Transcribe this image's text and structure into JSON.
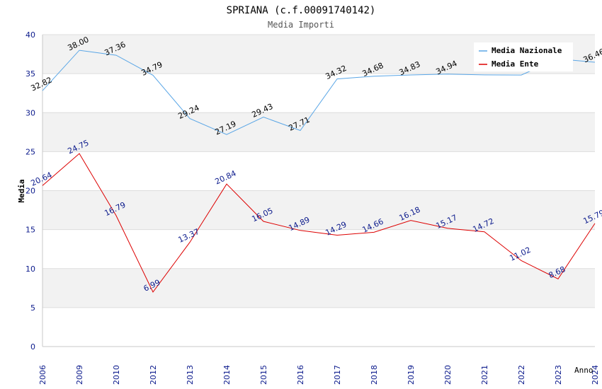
{
  "chart_data": {
    "type": "line",
    "title": "SPRIANA (c.f.00091740142)",
    "subtitle": "Media Importi",
    "xlabel": "Anno",
    "ylabel": "Media",
    "ylim": [
      0,
      40
    ],
    "yticks": [
      0,
      5,
      10,
      15,
      20,
      25,
      30,
      35,
      40
    ],
    "categories": [
      "2006",
      "2009",
      "2010",
      "2012",
      "2013",
      "2014",
      "2015",
      "2016",
      "2017",
      "2018",
      "2019",
      "2020",
      "2021",
      "2022",
      "2023",
      "2024"
    ],
    "series": [
      {
        "name": "Media Nazionale",
        "color": "#5aa6e6",
        "label_color": "#000000",
        "values": [
          32.82,
          38.0,
          37.36,
          34.79,
          29.24,
          27.19,
          29.43,
          27.71,
          34.32,
          34.68,
          34.83,
          34.94,
          34.84,
          34.82,
          36.9,
          36.46
        ],
        "labels": [
          "32.82",
          "38.00",
          "37.36",
          "34.79",
          "29.24",
          "27.19",
          "29.43",
          "27.71",
          "34.32",
          "34.68",
          "34.83",
          "34.94",
          "",
          "",
          "",
          "36.46"
        ]
      },
      {
        "name": "Media Ente",
        "color": "#dd0000",
        "label_color": "#0b1a8c",
        "values": [
          20.64,
          24.75,
          16.79,
          6.99,
          13.37,
          20.84,
          16.05,
          14.89,
          14.29,
          14.66,
          16.18,
          15.17,
          14.72,
          11.02,
          8.68,
          15.79
        ],
        "labels": [
          "20.64",
          "24.75",
          "16.79",
          "6.99",
          "13.37",
          "20.84",
          "16.05",
          "14.89",
          "14.29",
          "14.66",
          "16.18",
          "15.17",
          "14.72",
          "11.02",
          "8.68",
          "15.79"
        ]
      }
    ],
    "legend": {
      "position": "top-right"
    },
    "grid": true,
    "colors": {
      "band": "#f2f2f2",
      "gridline": "#dddddd",
      "axis": "#c8c8c8",
      "tick_text": "#0b1a8c",
      "title_text": "#000000",
      "subtitle_text": "#555555"
    }
  }
}
